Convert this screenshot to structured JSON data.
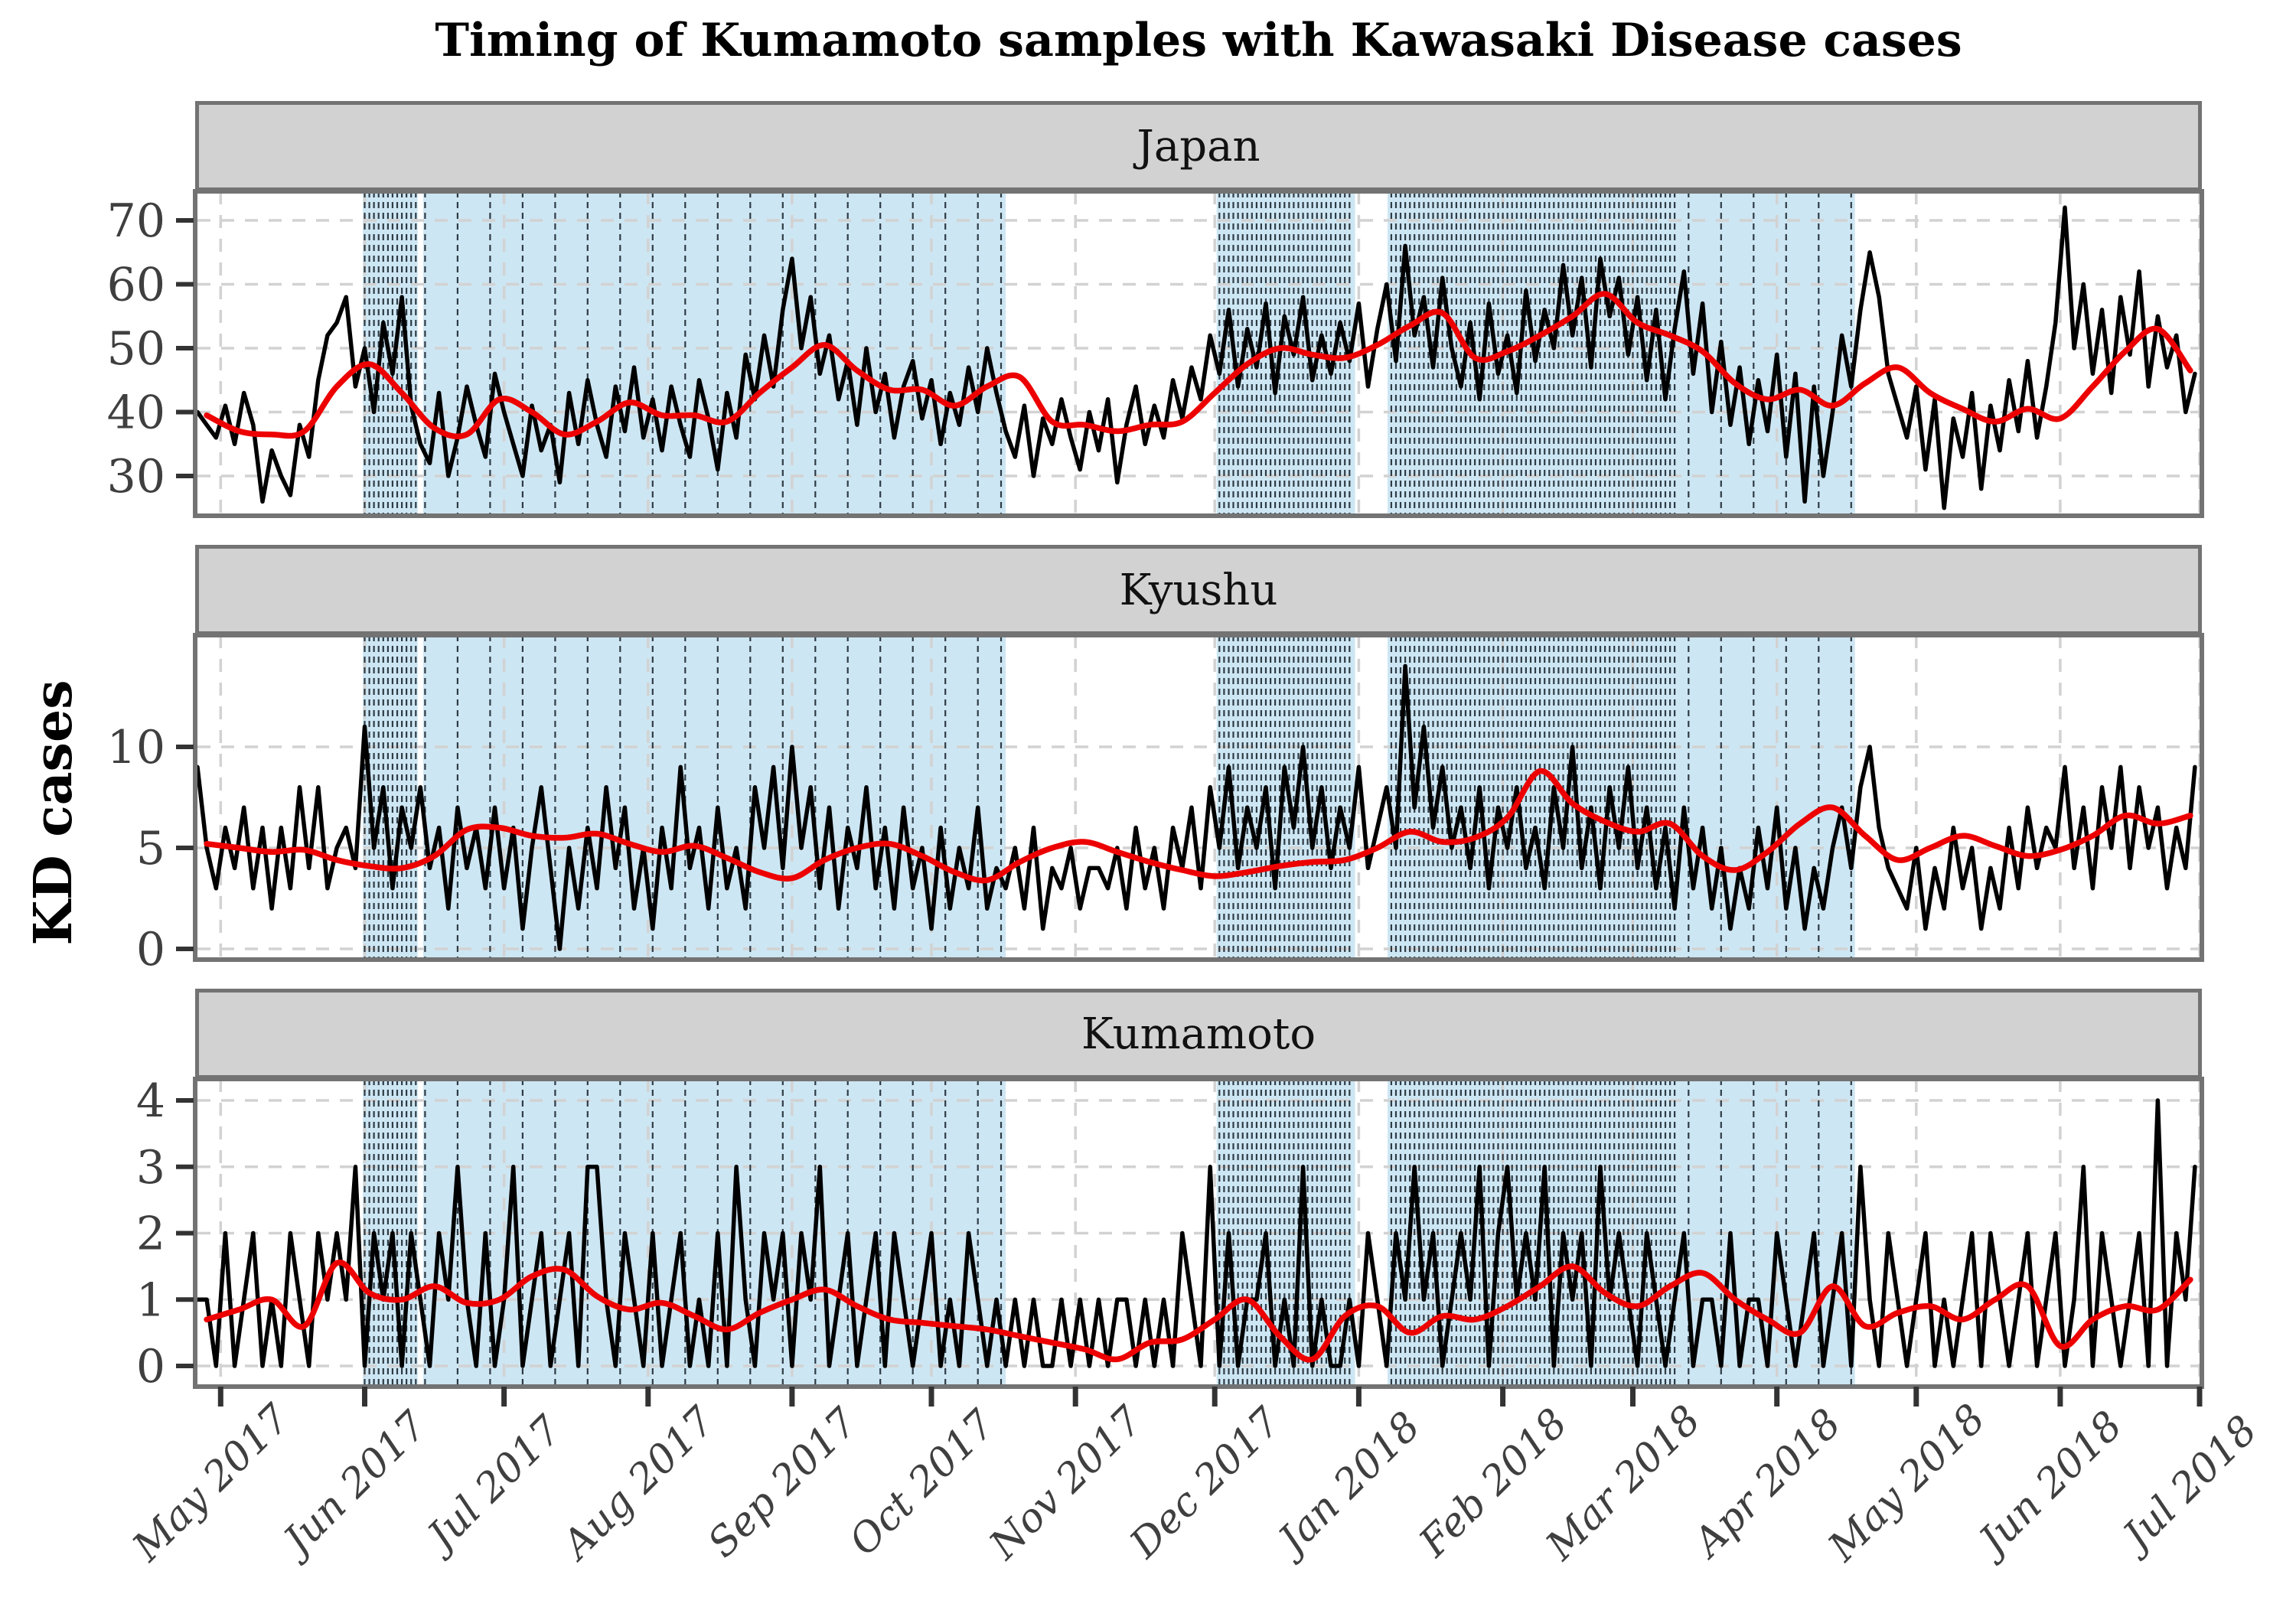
{
  "chart_data": {
    "type": "line",
    "title": "Timing of Kumamoto samples with Kawasaki Disease cases",
    "ylabel": "KD cases",
    "xlabel": "",
    "legend_position": "none",
    "grid": "dashed light-gray at month and y-tick positions",
    "x_axis": {
      "start_date": "2017-04-26",
      "total_days": 431,
      "months": [
        {
          "label": "May 2017",
          "day": 5
        },
        {
          "label": "Jun 2017",
          "day": 36
        },
        {
          "label": "Jul 2017",
          "day": 66
        },
        {
          "label": "Aug 2017",
          "day": 97
        },
        {
          "label": "Sep 2017",
          "day": 128
        },
        {
          "label": "Oct 2017",
          "day": 158
        },
        {
          "label": "Nov 2017",
          "day": 189
        },
        {
          "label": "Dec 2017",
          "day": 219
        },
        {
          "label": "Jan 2018",
          "day": 250
        },
        {
          "label": "Feb 2018",
          "day": 281
        },
        {
          "label": "Mar 2018",
          "day": 309
        },
        {
          "label": "Apr 2018",
          "day": 340
        },
        {
          "label": "May 2018",
          "day": 370
        },
        {
          "label": "Jun 2018",
          "day": 401
        },
        {
          "label": "Jul 2018",
          "day": 431
        }
      ]
    },
    "sample_bands": [
      {
        "fill_start_day": 35.6,
        "fill_end_day": 47.4,
        "line_from": 36,
        "line_to": 47,
        "line_step": 1
      },
      {
        "fill_start_day": 48.6,
        "fill_end_day": 174.0,
        "line_from": 49,
        "line_to": 173,
        "line_step": 7
      },
      {
        "fill_start_day": 219.4,
        "fill_end_day": 249.2,
        "line_from": 220,
        "line_to": 248,
        "line_step": 1
      },
      {
        "fill_start_day": 256.2,
        "fill_end_day": 318.7,
        "line_from": 257,
        "line_to": 318,
        "line_step": 1
      },
      {
        "fill_start_day": 318.7,
        "fill_end_day": 356.8,
        "line_from": 321,
        "line_to": 356,
        "line_step": 7
      }
    ],
    "facets": [
      {
        "label": "Japan",
        "y_ticks": [
          70,
          60,
          50,
          40,
          30
        ],
        "ylim": [
          23.8,
          74.5
        ],
        "observed": {
          "start_day": 0,
          "step_days": 2,
          "values": [
            40,
            38,
            36,
            41,
            35,
            43,
            38,
            26,
            34,
            30,
            27,
            38,
            33,
            45,
            52,
            54,
            58,
            44,
            50,
            40,
            54,
            46,
            58,
            41,
            35,
            32,
            43,
            30,
            36,
            44,
            38,
            33,
            46,
            40,
            35,
            30,
            41,
            34,
            38,
            29,
            43,
            35,
            45,
            38,
            33,
            44,
            37,
            47,
            36,
            42,
            34,
            44,
            38,
            33,
            45,
            39,
            31,
            43,
            36,
            49,
            42,
            52,
            44,
            56,
            64,
            50,
            58,
            46,
            52,
            42,
            48,
            38,
            50,
            40,
            46,
            36,
            44,
            48,
            39,
            45,
            35,
            43,
            38,
            47,
            40,
            50,
            43,
            37,
            33,
            41,
            30,
            39,
            35,
            42,
            36,
            31,
            40,
            34,
            42,
            29,
            38,
            44,
            35,
            41,
            36,
            45,
            39,
            47,
            42,
            52,
            46,
            56,
            44,
            53,
            47,
            57,
            43,
            55,
            49,
            58,
            45,
            52,
            46,
            54,
            48,
            57,
            44,
            53,
            60,
            48,
            66,
            52,
            58,
            47,
            61,
            50,
            44,
            54,
            42,
            57,
            46,
            52,
            43,
            59,
            48,
            56,
            50,
            63,
            52,
            61,
            47,
            64,
            55,
            61,
            49,
            58,
            45,
            56,
            42,
            53,
            62,
            46,
            57,
            40,
            51,
            38,
            47,
            35,
            45,
            37,
            49,
            33,
            46,
            26,
            44,
            30,
            40,
            52,
            44,
            56,
            65,
            58,
            46,
            41,
            36,
            44,
            31,
            42,
            25,
            39,
            33,
            43,
            28,
            41,
            34,
            45,
            37,
            48,
            36,
            44,
            54,
            72,
            50,
            60,
            46,
            56,
            43,
            58,
            49,
            62,
            44,
            55,
            47,
            52,
            40,
            46
          ]
        },
        "smoothed": {
          "start_day": 2,
          "step_days": 7,
          "values": [
            39.5,
            37,
            36.5,
            37,
            44,
            47.5,
            43,
            37.5,
            36.5,
            42,
            40,
            36.5,
            38.5,
            41.5,
            39.5,
            39.5,
            38.5,
            43,
            47,
            50.5,
            46.5,
            43.5,
            43.5,
            41,
            44,
            45.5,
            38.5,
            38,
            37,
            38,
            38.5,
            43,
            47.5,
            50,
            49,
            48.5,
            50.5,
            53.5,
            55.5,
            48.5,
            49.5,
            52,
            55,
            58.5,
            54,
            52,
            49.5,
            44.5,
            42,
            43.5,
            41,
            44.5,
            47,
            43,
            40.5,
            38.5,
            40.5,
            39,
            44,
            49.5,
            53,
            46.5
          ]
        }
      },
      {
        "label": "Kyushu",
        "y_ticks": [
          10,
          5,
          0
        ],
        "ylim": [
          -0.6,
          15.0
        ],
        "observed": {
          "start_day": 0,
          "step_days": 2,
          "values": [
            9,
            5,
            3,
            6,
            4,
            7,
            3,
            6,
            2,
            6,
            3,
            8,
            4,
            8,
            3,
            5,
            6,
            4,
            11,
            5,
            8,
            3,
            7,
            5,
            8,
            4,
            6,
            2,
            7,
            4,
            6,
            3,
            7,
            3,
            6,
            1,
            5,
            8,
            4,
            0,
            5,
            2,
            6,
            3,
            8,
            4,
            7,
            2,
            5,
            1,
            6,
            3,
            9,
            4,
            6,
            2,
            7,
            3,
            5,
            2,
            8,
            5,
            9,
            4,
            10,
            5,
            8,
            3,
            7,
            2,
            6,
            4,
            8,
            3,
            6,
            2,
            7,
            3,
            5,
            1,
            6,
            2,
            5,
            3,
            7,
            2,
            4,
            3,
            5,
            2,
            6,
            1,
            4,
            3,
            5,
            2,
            4,
            4,
            3,
            5,
            2,
            6,
            3,
            5,
            2,
            6,
            4,
            7,
            3,
            8,
            5,
            9,
            4,
            7,
            5,
            8,
            3,
            9,
            6,
            10,
            5,
            8,
            4,
            7,
            5,
            9,
            4,
            6,
            8,
            5,
            14,
            7,
            11,
            6,
            9,
            5,
            7,
            4,
            8,
            3,
            7,
            5,
            8,
            4,
            6,
            3,
            8,
            5,
            10,
            4,
            7,
            3,
            8,
            5,
            9,
            4,
            7,
            3,
            6,
            2,
            7,
            3,
            6,
            2,
            5,
            1,
            4,
            2,
            6,
            3,
            7,
            2,
            5,
            1,
            4,
            2,
            5,
            7,
            4,
            8,
            10,
            6,
            4,
            3,
            2,
            5,
            1,
            4,
            2,
            6,
            3,
            5,
            1,
            4,
            2,
            6,
            3,
            7,
            4,
            6,
            5,
            9,
            4,
            7,
            3,
            8,
            5,
            9,
            4,
            8,
            5,
            7,
            3,
            6,
            4,
            9
          ]
        },
        "smoothed": {
          "start_day": 2,
          "step_days": 7,
          "values": [
            5.2,
            5.0,
            4.8,
            4.9,
            4.4,
            4.1,
            4.0,
            4.6,
            5.9,
            6.0,
            5.6,
            5.5,
            5.7,
            5.2,
            4.8,
            5.1,
            4.5,
            3.8,
            3.5,
            4.4,
            5.0,
            5.2,
            4.6,
            3.8,
            3.4,
            4.3,
            5.0,
            5.3,
            4.8,
            4.3,
            3.9,
            3.6,
            3.8,
            4.1,
            4.3,
            4.4,
            5.0,
            5.8,
            5.3,
            5.5,
            6.5,
            8.8,
            7.2,
            6.3,
            5.8,
            6.2,
            4.6,
            3.9,
            4.8,
            6.2,
            7.0,
            5.6,
            4.4,
            5.0,
            5.6,
            5.1,
            4.6,
            4.9,
            5.6,
            6.6,
            6.2,
            6.6
          ]
        }
      },
      {
        "label": "Kumamoto",
        "y_ticks": [
          4,
          3,
          2,
          1,
          0
        ],
        "ylim": [
          -0.47,
          4.26
        ],
        "observed": {
          "start_day": 0,
          "step_days": 2,
          "values": [
            1,
            1,
            0,
            2,
            0,
            1,
            2,
            0,
            1,
            0,
            2,
            1,
            0,
            2,
            1,
            2,
            1,
            3,
            0,
            2,
            1,
            2,
            0,
            2,
            1,
            0,
            2,
            1,
            3,
            1,
            0,
            2,
            0,
            1,
            3,
            0,
            1,
            2,
            0,
            1,
            2,
            0,
            3,
            3,
            1,
            0,
            2,
            1,
            0,
            2,
            0,
            1,
            2,
            0,
            1,
            0,
            2,
            0,
            3,
            1,
            0,
            2,
            1,
            2,
            0,
            2,
            1,
            3,
            0,
            1,
            2,
            0,
            1,
            2,
            0,
            2,
            1,
            0,
            1,
            2,
            0,
            1,
            0,
            2,
            1,
            0,
            1,
            0,
            1,
            0,
            1,
            0,
            0,
            1,
            0,
            1,
            0,
            1,
            0,
            1,
            1,
            0,
            1,
            0,
            1,
            0,
            2,
            1,
            0,
            3,
            0,
            2,
            0,
            1,
            1,
            2,
            0,
            1,
            0,
            3,
            0,
            1,
            0,
            0,
            1,
            0,
            2,
            1,
            0,
            2,
            1,
            3,
            1,
            2,
            0,
            1,
            2,
            1,
            3,
            0,
            2,
            3,
            1,
            2,
            1,
            3,
            0,
            2,
            1,
            2,
            0,
            3,
            1,
            2,
            1,
            0,
            2,
            1,
            0,
            1,
            2,
            0,
            1,
            1,
            0,
            2,
            0,
            1,
            1,
            0,
            2,
            1,
            0,
            1,
            2,
            0,
            1,
            2,
            0,
            3,
            1,
            0,
            2,
            1,
            0,
            1,
            2,
            0,
            1,
            0,
            1,
            2,
            0,
            2,
            1,
            0,
            1,
            2,
            0,
            1,
            2,
            0,
            1,
            3,
            0,
            2,
            1,
            0,
            1,
            2,
            0,
            4,
            0,
            2,
            1,
            3
          ]
        },
        "smoothed": {
          "start_day": 2,
          "step_days": 7,
          "values": [
            0.7,
            0.85,
            1.0,
            0.6,
            1.55,
            1.1,
            1.0,
            1.2,
            0.95,
            1.0,
            1.35,
            1.45,
            1.05,
            0.85,
            0.95,
            0.75,
            0.55,
            0.8,
            1.0,
            1.15,
            0.9,
            0.7,
            0.65,
            0.6,
            0.55,
            0.45,
            0.35,
            0.25,
            0.1,
            0.35,
            0.4,
            0.7,
            1.0,
            0.45,
            0.1,
            0.75,
            0.9,
            0.5,
            0.75,
            0.7,
            0.9,
            1.2,
            1.5,
            1.1,
            0.9,
            1.2,
            1.4,
            1.0,
            0.7,
            0.5,
            1.2,
            0.6,
            0.8,
            0.9,
            0.7,
            1.0,
            1.2,
            0.3,
            0.7,
            0.9,
            0.85,
            1.3
          ]
        }
      }
    ],
    "colors": {
      "observed_line": "#000000",
      "smoothed_line": "#ed0000",
      "band_fill": "#cde6f3",
      "sample_line": "#1e2a33",
      "grid": "#d2d2d2",
      "panel_border": "#737373",
      "header_fill": "#d2d2d2",
      "axis_text": "#3f3f3f",
      "tick_mark": "#333333"
    }
  }
}
